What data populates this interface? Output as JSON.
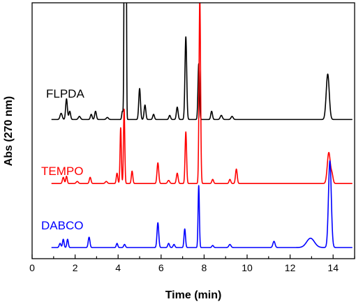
{
  "chart_data": {
    "type": "line",
    "title": "",
    "xlabel": "Time (min)",
    "ylabel": "Abs (270 nm)",
    "xlim": [
      0,
      15
    ],
    "x_ticks": [
      0,
      2,
      4,
      6,
      8,
      10,
      12,
      14
    ],
    "x_minor_step": 1,
    "y_ticks_shown": false,
    "grid": false,
    "legend": "inline-left",
    "series": [
      {
        "name": "FLPDA",
        "color": "#000000",
        "baseline": 0.62,
        "peaks": [
          [
            1.35,
            0.03,
            0.05
          ],
          [
            1.6,
            0.1,
            0.04
          ],
          [
            1.75,
            0.04,
            0.04
          ],
          [
            2.2,
            0.015,
            0.05
          ],
          [
            2.75,
            0.025,
            0.04
          ],
          [
            2.95,
            0.04,
            0.04
          ],
          [
            3.5,
            0.01,
            0.05
          ],
          [
            4.2,
            0.04,
            0.03
          ],
          [
            4.3,
            1.3,
            0.025
          ],
          [
            4.37,
            1.2,
            0.02
          ],
          [
            5.0,
            0.15,
            0.04
          ],
          [
            5.25,
            0.07,
            0.04
          ],
          [
            5.65,
            0.025,
            0.04
          ],
          [
            6.4,
            0.02,
            0.04
          ],
          [
            6.75,
            0.06,
            0.04
          ],
          [
            7.15,
            0.4,
            0.04
          ],
          [
            7.75,
            0.27,
            0.035
          ],
          [
            8.35,
            0.04,
            0.04
          ],
          [
            8.8,
            0.02,
            0.05
          ],
          [
            9.3,
            0.015,
            0.05
          ],
          [
            13.75,
            0.22,
            0.07
          ]
        ]
      },
      {
        "name": "TEMPO",
        "color": "#ff0000",
        "baseline": 0.31,
        "peaks": [
          [
            1.45,
            0.03,
            0.04
          ],
          [
            1.6,
            0.035,
            0.035
          ],
          [
            2.1,
            0.01,
            0.05
          ],
          [
            2.7,
            0.03,
            0.04
          ],
          [
            3.45,
            0.01,
            0.05
          ],
          [
            3.95,
            0.05,
            0.035
          ],
          [
            4.12,
            0.27,
            0.03
          ],
          [
            4.28,
            0.36,
            0.03
          ],
          [
            4.65,
            0.06,
            0.035
          ],
          [
            5.85,
            0.1,
            0.04
          ],
          [
            6.35,
            0.015,
            0.05
          ],
          [
            6.75,
            0.05,
            0.04
          ],
          [
            7.15,
            0.25,
            0.035
          ],
          [
            7.8,
            0.9,
            0.035
          ],
          [
            8.4,
            0.02,
            0.04
          ],
          [
            9.2,
            0.02,
            0.04
          ],
          [
            9.5,
            0.07,
            0.04
          ],
          [
            13.8,
            0.15,
            0.07
          ],
          [
            13.95,
            0.04,
            0.05
          ]
        ]
      },
      {
        "name": "DABCO",
        "color": "#0000ff",
        "baseline": 0.0,
        "peaks": [
          [
            1.3,
            0.02,
            0.04
          ],
          [
            1.45,
            0.04,
            0.035
          ],
          [
            1.65,
            0.04,
            0.035
          ],
          [
            2.65,
            0.05,
            0.04
          ],
          [
            3.95,
            0.02,
            0.035
          ],
          [
            4.3,
            0.015,
            0.04
          ],
          [
            5.85,
            0.12,
            0.04
          ],
          [
            6.35,
            0.02,
            0.04
          ],
          [
            6.6,
            0.015,
            0.04
          ],
          [
            7.1,
            0.09,
            0.035
          ],
          [
            7.75,
            0.3,
            0.03
          ],
          [
            8.4,
            0.01,
            0.04
          ],
          [
            9.2,
            0.015,
            0.05
          ],
          [
            11.25,
            0.03,
            0.05
          ],
          [
            12.95,
            0.045,
            0.18
          ],
          [
            13.85,
            0.42,
            0.065
          ]
        ]
      }
    ],
    "labels": [
      "FLPDA",
      "TEMPO",
      "DABCO"
    ]
  }
}
